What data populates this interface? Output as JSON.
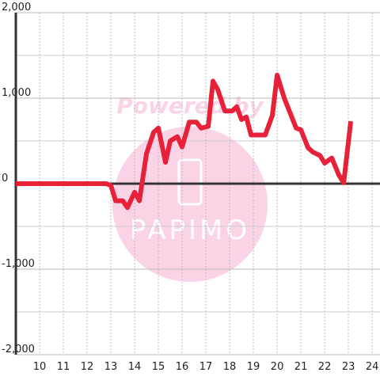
{
  "chart_data": {
    "type": "line",
    "x": [
      9,
      12.8,
      13.0,
      13.2,
      13.5,
      13.7,
      14.0,
      14.2,
      14.5,
      14.8,
      15.0,
      15.3,
      15.5,
      15.8,
      16.0,
      16.3,
      16.6,
      16.8,
      17.1,
      17.3,
      17.5,
      17.8,
      18.1,
      18.3,
      18.5,
      18.7,
      18.9,
      19.5,
      19.8,
      20.0,
      20.3,
      20.8,
      21.0,
      21.3,
      21.5,
      21.8,
      22.0,
      22.3,
      22.6,
      22.8,
      23.1
    ],
    "series": [
      {
        "color": "#e8213a",
        "values": [
          0,
          0,
          -20,
          -200,
          -200,
          -280,
          -100,
          -200,
          350,
          600,
          650,
          250,
          500,
          550,
          430,
          720,
          720,
          650,
          670,
          1200,
          1100,
          850,
          850,
          900,
          750,
          780,
          570,
          570,
          800,
          1270,
          1000,
          650,
          630,
          420,
          370,
          330,
          240,
          300,
          100,
          10,
          730
        ]
      }
    ],
    "xlim": [
      9,
      24.33
    ],
    "xticks": [
      10,
      11,
      12,
      13,
      14,
      15,
      16,
      17,
      18,
      19,
      20,
      21,
      22,
      23,
      24
    ],
    "ylim": [
      -2000,
      2000
    ],
    "yticks": [
      {
        "value": -2000,
        "label": "-2,000"
      },
      {
        "value": -1000,
        "label": "-1,000"
      },
      0,
      {
        "value": 1000,
        "label": "1,000"
      },
      {
        "value": 2000,
        "label": "2,000"
      }
    ],
    "minor_yticks": [
      -1500,
      -500,
      500,
      1500
    ],
    "grid": true
  },
  "watermark": {
    "text": "Powered by",
    "logo": "PAPIMO"
  }
}
